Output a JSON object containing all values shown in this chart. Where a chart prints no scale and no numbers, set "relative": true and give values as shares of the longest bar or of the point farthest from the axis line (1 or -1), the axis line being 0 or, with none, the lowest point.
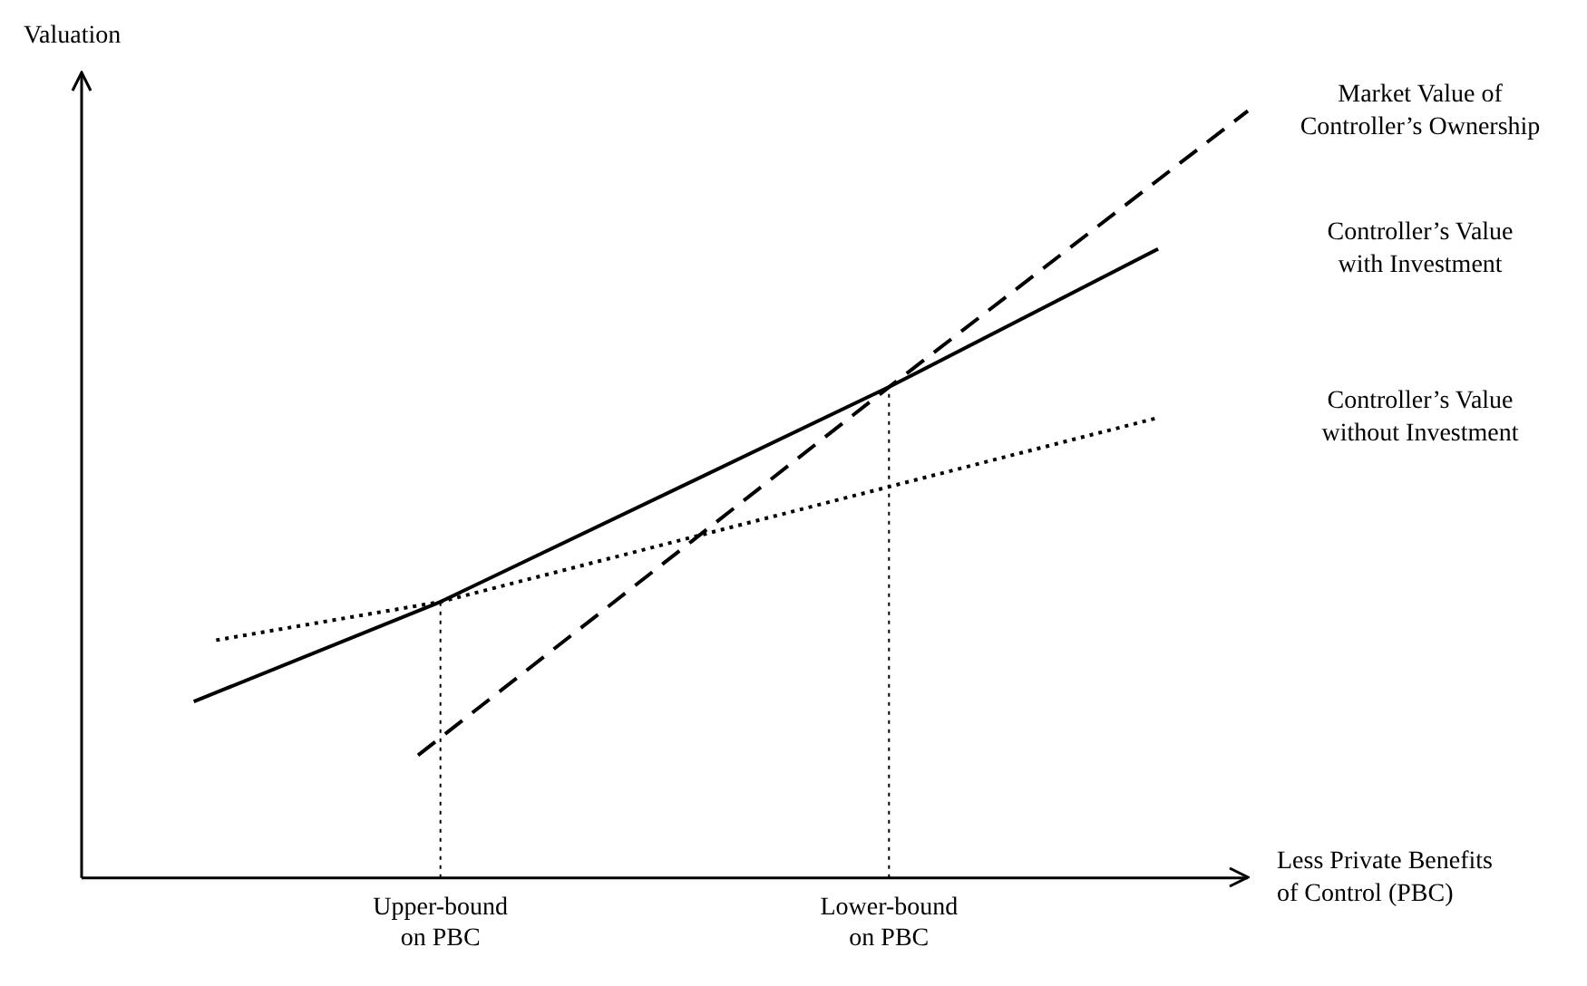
{
  "chart_data": {
    "type": "line",
    "relative": true,
    "xlabel": "Less Private Benefits\nof Control (PBC)",
    "ylabel": "Valuation",
    "categories": [
      null,
      null,
      null,
      null,
      null,
      null,
      null,
      null,
      null,
      null,
      null,
      null,
      null,
      null,
      null,
      null,
      "Upper-bound\non PBC",
      null,
      null,
      null,
      null,
      null,
      null,
      null,
      null,
      null,
      null,
      null,
      null,
      null,
      null,
      null,
      null,
      null,
      null,
      null,
      "Lower-bound\non PBC",
      null,
      null,
      null,
      null,
      null,
      null,
      null,
      null,
      null,
      null,
      null,
      null,
      null,
      null,
      null,
      null
    ],
    "series": [
      {
        "name": "Market Value of\nController’s Ownership",
        "color": "#000000",
        "line_style": "dashed",
        "values": [
          null,
          null,
          null,
          null,
          null,
          null,
          null,
          null,
          null,
          null,
          null,
          null,
          null,
          null,
          null,
          0.16,
          null,
          null,
          null,
          null,
          null,
          null,
          null,
          null,
          null,
          null,
          null,
          null,
          null,
          null,
          null,
          null,
          null,
          null,
          null,
          null,
          0.64,
          null,
          null,
          null,
          null,
          null,
          null,
          null,
          null,
          null,
          null,
          null,
          null,
          null,
          null,
          null,
          1
        ]
      },
      {
        "name": "Controller’s Value\nwith Investment",
        "color": "#000000",
        "line_style": "solid",
        "values": [
          null,
          null,
          null,
          null,
          null,
          0.23,
          null,
          null,
          null,
          null,
          null,
          null,
          null,
          null,
          null,
          null,
          0.36,
          null,
          null,
          null,
          null,
          null,
          null,
          null,
          null,
          null,
          null,
          null,
          null,
          null,
          null,
          null,
          null,
          null,
          null,
          null,
          0.64,
          null,
          null,
          null,
          null,
          null,
          null,
          null,
          null,
          null,
          null,
          null,
          0.82,
          null,
          null,
          null,
          null
        ]
      },
      {
        "name": "Controller’s Value\nwithout Investment",
        "color": "#000000",
        "line_style": "dotted",
        "values": [
          null,
          null,
          null,
          null,
          null,
          null,
          0.31,
          null,
          null,
          null,
          null,
          null,
          null,
          null,
          null,
          null,
          0.36,
          null,
          null,
          null,
          null,
          null,
          null,
          null,
          null,
          null,
          null,
          null,
          null,
          null,
          null,
          null,
          null,
          null,
          null,
          null,
          0.51,
          null,
          null,
          null,
          null,
          null,
          null,
          null,
          null,
          null,
          null,
          null,
          0.6,
          null,
          null,
          null,
          null
        ]
      }
    ],
    "ref_lines": [
      {
        "axis": "x",
        "value": "Upper-bound\non PBC",
        "line_style": "dotted"
      },
      {
        "axis": "x",
        "value": "Lower-bound\non PBC",
        "line_style": "dotted"
      }
    ],
    "legend": false,
    "grid": false
  }
}
